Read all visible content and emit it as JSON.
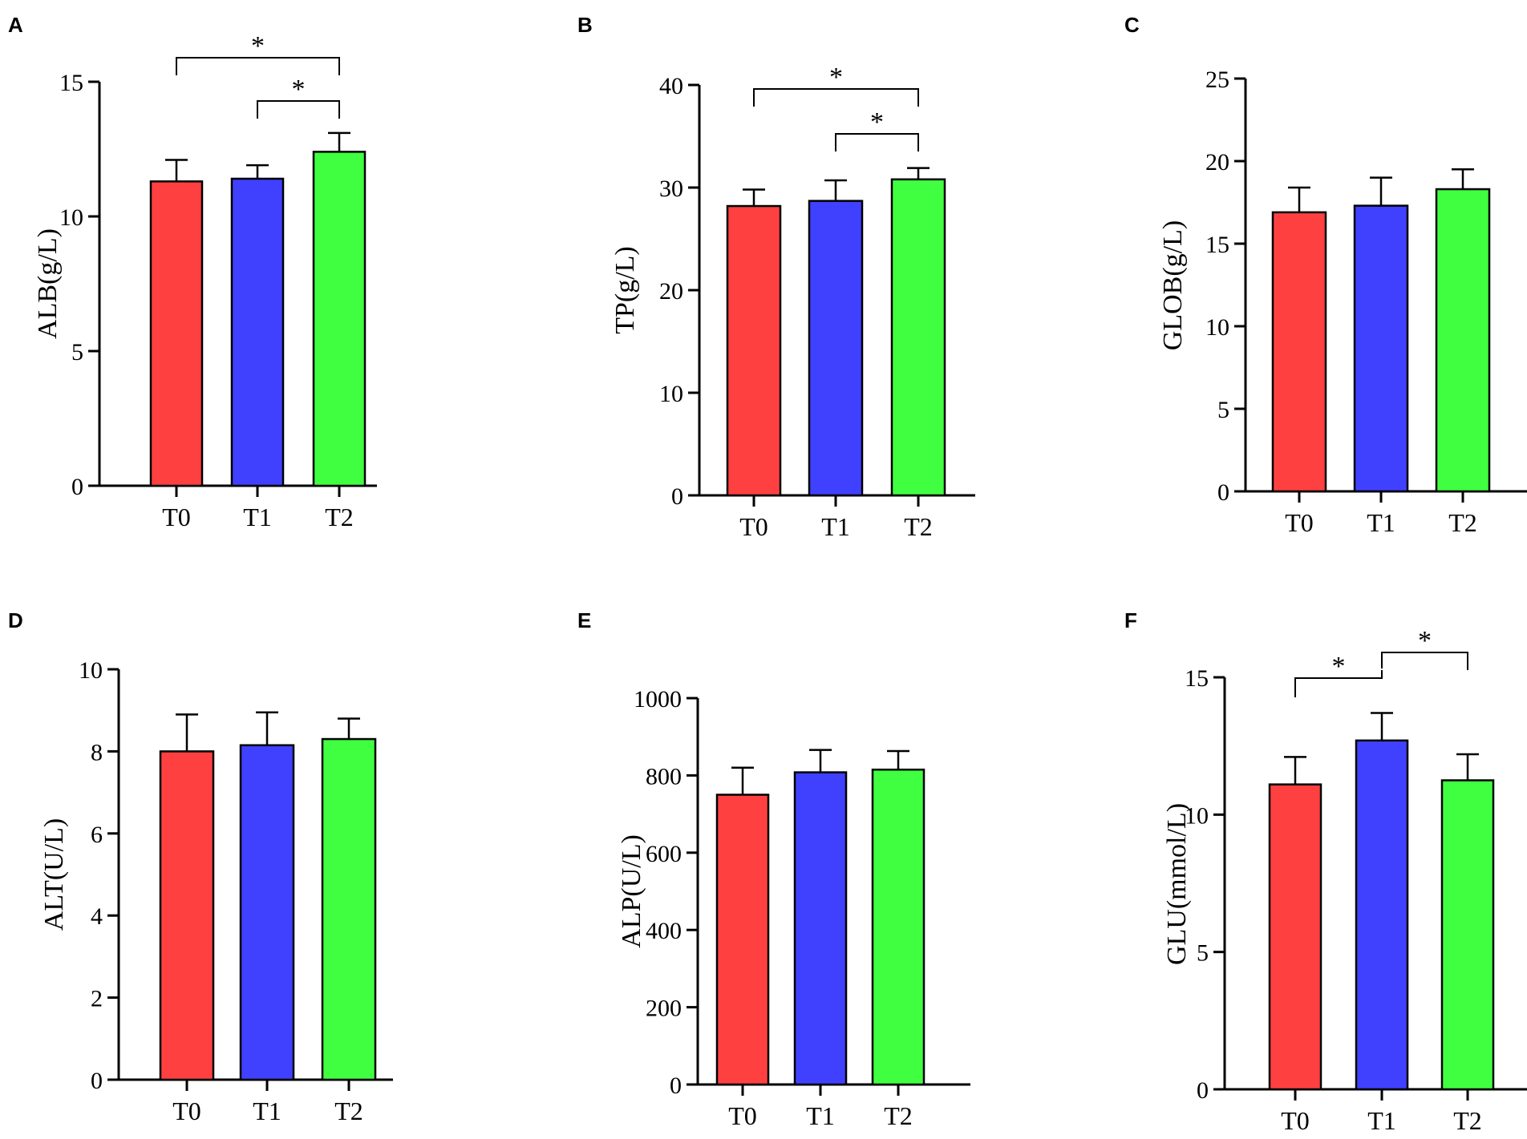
{
  "colors": {
    "T0": "#ff4040",
    "T1": "#4040ff",
    "T2": "#40ff40",
    "axis": "#000000"
  },
  "chart_data": [
    {
      "panel": "A",
      "type": "bar",
      "ylabel": "ALB(g/L)",
      "categories": [
        "T0",
        "T1",
        "T2"
      ],
      "values": [
        11.3,
        11.4,
        12.4
      ],
      "errors": [
        0.8,
        0.5,
        0.7
      ],
      "ylim": [
        0,
        15
      ],
      "yticks": [
        0,
        5,
        10,
        15
      ],
      "significance": [
        {
          "from": 0,
          "to": 2,
          "label": "*"
        },
        {
          "from": 1,
          "to": 2,
          "label": "*"
        }
      ]
    },
    {
      "panel": "B",
      "type": "bar",
      "ylabel": "TP(g/L)",
      "categories": [
        "T0",
        "T1",
        "T2"
      ],
      "values": [
        28.2,
        28.7,
        30.8
      ],
      "errors": [
        1.6,
        2.0,
        1.1
      ],
      "ylim": [
        0,
        40
      ],
      "yticks": [
        0,
        10,
        20,
        30,
        40
      ],
      "significance": [
        {
          "from": 0,
          "to": 2,
          "label": "*"
        },
        {
          "from": 1,
          "to": 2,
          "label": "*"
        }
      ]
    },
    {
      "panel": "C",
      "type": "bar",
      "ylabel": "GLOB(g/L)",
      "categories": [
        "T0",
        "T1",
        "T2"
      ],
      "values": [
        16.9,
        17.3,
        18.3
      ],
      "errors": [
        1.5,
        1.7,
        1.2
      ],
      "ylim": [
        0,
        25
      ],
      "yticks": [
        0,
        5,
        10,
        15,
        20,
        25
      ],
      "significance": []
    },
    {
      "panel": "D",
      "type": "bar",
      "ylabel": "ALT(U/L)",
      "categories": [
        "T0",
        "T1",
        "T2"
      ],
      "values": [
        8.0,
        8.15,
        8.3
      ],
      "errors": [
        0.9,
        0.8,
        0.5
      ],
      "ylim": [
        0,
        10
      ],
      "yticks": [
        0,
        2,
        4,
        6,
        8,
        10
      ],
      "significance": []
    },
    {
      "panel": "E",
      "type": "bar",
      "ylabel": "ALP(U/L)",
      "categories": [
        "T0",
        "T1",
        "T2"
      ],
      "values": [
        750,
        808,
        815
      ],
      "errors": [
        70,
        58,
        48
      ],
      "ylim": [
        0,
        1000
      ],
      "yticks": [
        0,
        200,
        400,
        600,
        800,
        1000
      ],
      "significance": []
    },
    {
      "panel": "F",
      "type": "bar",
      "ylabel": "GLU(mmol/L)",
      "categories": [
        "T0",
        "T1",
        "T2"
      ],
      "values": [
        11.1,
        12.7,
        11.25
      ],
      "errors": [
        1.0,
        1.0,
        0.95
      ],
      "ylim": [
        0,
        15
      ],
      "yticks": [
        0,
        5,
        10,
        15
      ],
      "significance": [
        {
          "from": 0,
          "to": 1,
          "label": "*"
        },
        {
          "from": 1,
          "to": 2,
          "label": "*"
        }
      ]
    }
  ]
}
